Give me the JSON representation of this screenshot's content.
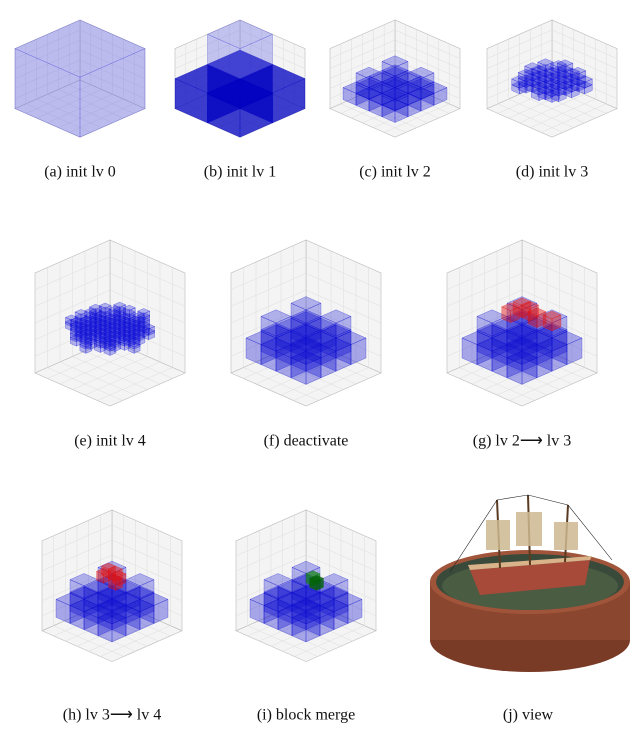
{
  "figure": {
    "panels": [
      {
        "caption": "(a) init lv 0"
      },
      {
        "caption": "(b) init lv 1"
      },
      {
        "caption": "(c) init lv 2"
      },
      {
        "caption": "(d) init lv 3"
      },
      {
        "caption": "(e) init lv 4"
      },
      {
        "caption": "(f) deactivate"
      },
      {
        "caption": "(g) lv 2⟶ lv 3"
      },
      {
        "caption": "(h) lv 3⟶ lv 4"
      },
      {
        "caption": "(i) block merge"
      },
      {
        "caption": "(j) view"
      }
    ]
  }
}
